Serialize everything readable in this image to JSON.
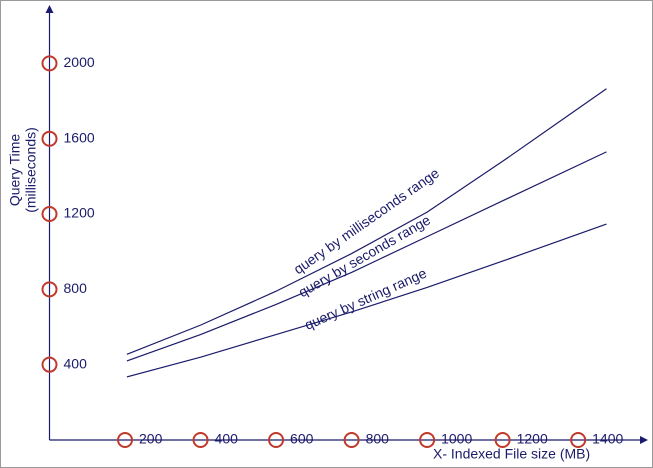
{
  "chart_data": {
    "type": "line",
    "y_label": [
      "Query Time",
      "(milliseconds)"
    ],
    "x_label": "X- Indexed File size (MB)",
    "x": [
      205,
      400,
      600,
      800,
      1000,
      1200,
      1475
    ],
    "series": [
      {
        "name": "query by milliseconds range",
        "color": "#1b1b6b",
        "values": [
          455,
          610,
          790,
          990,
          1210,
          1480,
          1865
        ]
      },
      {
        "name": "query by seconds range",
        "color": "#1b1b6b",
        "values": [
          420,
          560,
          720,
          890,
          1080,
          1270,
          1530
        ]
      },
      {
        "name": "query by string range",
        "color": "#1b1b6b",
        "values": [
          335,
          440,
          560,
          680,
          810,
          950,
          1147
        ]
      }
    ],
    "xlim": [
      0,
      1585
    ],
    "ylim": [
      0,
      2310
    ],
    "xticks": [
      200,
      400,
      600,
      800,
      1000,
      1200,
      1400
    ],
    "yticks": [
      400,
      800,
      1200,
      1600,
      2000
    ],
    "tick_marker_color": "#c0392b",
    "axis_color": "#1b1b6b"
  }
}
